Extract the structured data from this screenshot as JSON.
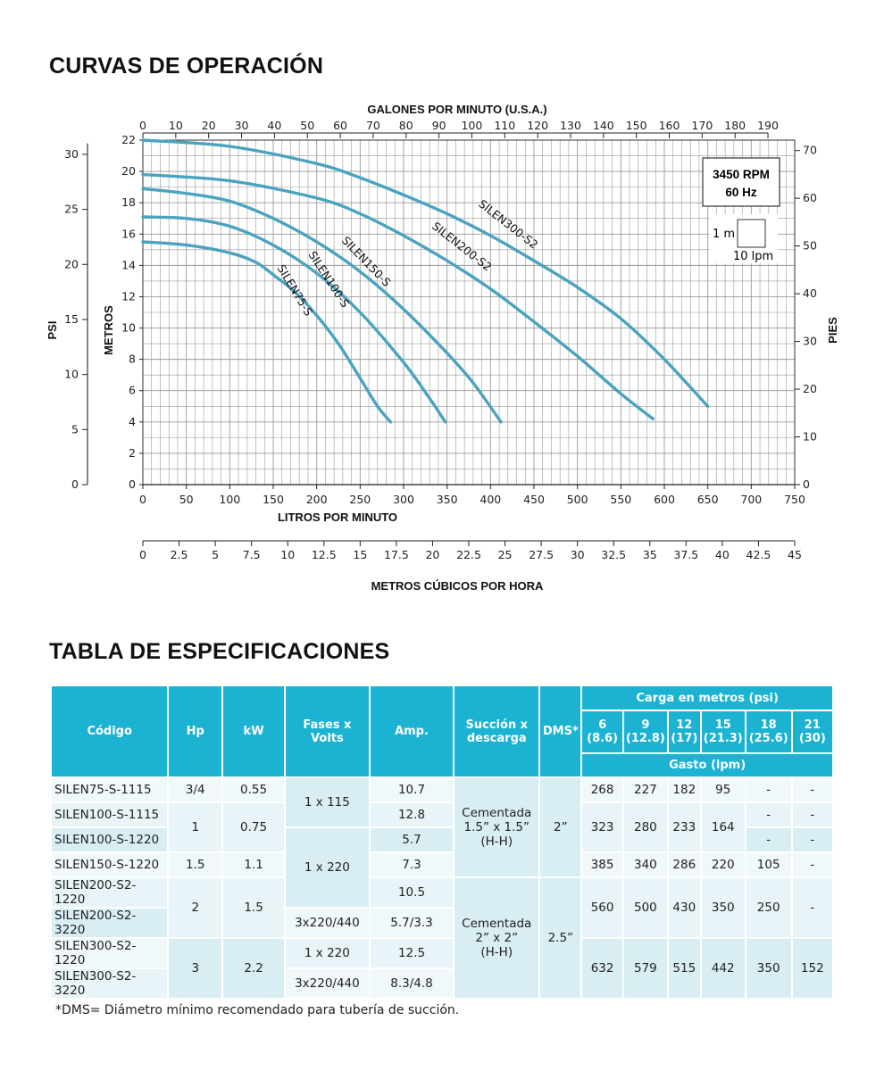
{
  "headings": {
    "curves": "CURVAS DE OPERACIÓN",
    "table": "TABLA DE ESPECIFICACIONES"
  },
  "chart_data": {
    "type": "line",
    "title": "",
    "x_top_label": "GALONES POR MINUTO (U.S.A.)",
    "x_top_ticks": [
      "0",
      "10",
      "20",
      "30",
      "40",
      "50",
      "60",
      "70",
      "80",
      "90",
      "100",
      "110",
      "120",
      "130",
      "140",
      "150",
      "160",
      "170",
      "180",
      "190"
    ],
    "xlabel": "LITROS POR MINUTO",
    "x_ticks": [
      "0",
      "50",
      "100",
      "150",
      "200",
      "250",
      "300",
      "350",
      "400",
      "450",
      "500",
      "550",
      "600",
      "650",
      "700",
      "750"
    ],
    "x2label": "METROS CÚBICOS POR HORA",
    "x2_ticks": [
      "0",
      "2.5",
      "5",
      "7.5",
      "10",
      "12.5",
      "15",
      "17.5",
      "20",
      "22.5",
      "25",
      "27.5",
      "30",
      "32.5",
      "35",
      "37.5",
      "40",
      "42.5",
      "45"
    ],
    "ylabel": "METROS",
    "y_ticks": [
      "0",
      "2",
      "4",
      "6",
      "8",
      "10",
      "12",
      "14",
      "16",
      "18",
      "20",
      "22"
    ],
    "y_psi_label": "PSI",
    "y_psi_ticks": [
      "0",
      "5",
      "10",
      "15",
      "20",
      "25",
      "30"
    ],
    "y_ft_label": "PIES",
    "y_ft_ticks": [
      "0",
      "10",
      "20",
      "30",
      "40",
      "50",
      "60",
      "70"
    ],
    "xlim": [
      0,
      750
    ],
    "ylim": [
      0,
      22
    ],
    "grid": true,
    "rpm_box": [
      "3450 RPM",
      "60 Hz"
    ],
    "scale_key": {
      "v": "1 m",
      "h": "10 lpm"
    },
    "series": [
      {
        "name": "SILEN75-S",
        "color": "#4aa3bf",
        "x": [
          0,
          50,
          100,
          130,
          150,
          175,
          200,
          225,
          250,
          270,
          285
        ],
        "y": [
          15.5,
          15.3,
          14.8,
          14.2,
          13.4,
          12.3,
          10.8,
          9.0,
          6.8,
          5.0,
          4.0
        ]
      },
      {
        "name": "SILEN100-S",
        "color": "#4aa3bf",
        "x": [
          0,
          50,
          100,
          150,
          200,
          250,
          300,
          330,
          348
        ],
        "y": [
          17.1,
          17.0,
          16.5,
          15.3,
          13.5,
          11.0,
          7.8,
          5.5,
          4.0
        ]
      },
      {
        "name": "SILEN150-S",
        "color": "#4aa3bf",
        "x": [
          0,
          50,
          100,
          150,
          200,
          250,
          300,
          350,
          380,
          412
        ],
        "y": [
          18.9,
          18.6,
          18.1,
          17.0,
          15.5,
          13.6,
          11.2,
          8.4,
          6.5,
          4.0
        ]
      },
      {
        "name": "SILEN200-S2",
        "color": "#4aa3bf",
        "x": [
          0,
          100,
          200,
          250,
          300,
          350,
          400,
          450,
          500,
          550,
          587
        ],
        "y": [
          19.8,
          19.4,
          18.3,
          17.3,
          15.9,
          14.3,
          12.5,
          10.4,
          8.2,
          5.8,
          4.2
        ]
      },
      {
        "name": "SILEN300-S2",
        "color": "#4aa3bf",
        "x": [
          0,
          100,
          200,
          250,
          300,
          350,
          400,
          450,
          500,
          550,
          600,
          650
        ],
        "y": [
          22.0,
          21.6,
          20.5,
          19.6,
          18.5,
          17.3,
          15.9,
          14.3,
          12.6,
          10.6,
          8.0,
          5.0
        ]
      }
    ]
  },
  "table": {
    "header": {
      "code": "Código",
      "hp": "Hp",
      "kw": "kW",
      "fases": "Fases x Volts",
      "amp": "Amp.",
      "succion": "Succión x descarga",
      "dms": "DMS*",
      "carga": "Carga en metros (psi)",
      "carga_cols": [
        {
          "m": "6",
          "psi": "(8.6)"
        },
        {
          "m": "9",
          "psi": "(12.8)"
        },
        {
          "m": "12",
          "psi": "(17)"
        },
        {
          "m": "15",
          "psi": "(21.3)"
        },
        {
          "m": "18",
          "psi": "(25.6)"
        },
        {
          "m": "21",
          "psi": "(30)"
        }
      ],
      "gasto": "Gasto (lpm)"
    },
    "rows": [
      {
        "code": "SILEN75-S-1115",
        "amp": "10.7"
      },
      {
        "code": "SILEN100-S-1115",
        "amp": "12.8"
      },
      {
        "code": "SILEN100-S-1220",
        "amp": "5.7"
      },
      {
        "code": "SILEN150-S-1220",
        "amp": "7.3"
      },
      {
        "code": "SILEN200-S2-1220",
        "amp": "10.5"
      },
      {
        "code": "SILEN200-S2-3220",
        "amp": "5.7/3.3"
      },
      {
        "code": "SILEN300-S2-1220",
        "amp": "12.5"
      },
      {
        "code": "SILEN300-S2-3220",
        "amp": "8.3/4.8"
      }
    ],
    "hp": [
      "3/4",
      "1",
      "1.5",
      "2",
      "3"
    ],
    "kw": [
      "0.55",
      "0.75",
      "1.1",
      "1.5",
      "2.2"
    ],
    "fases": [
      "1 x 115",
      "1 x 220",
      "3x220/440",
      "1 x 220",
      "3x220/440"
    ],
    "succion": [
      [
        "Cementada",
        "1.5” x 1.5”",
        "(H-H)"
      ],
      [
        "Cementada",
        "2” x 2”",
        "(H-H)"
      ]
    ],
    "dms": [
      "2”",
      "2.5”"
    ],
    "gasto": {
      "r75": [
        "268",
        "227",
        "182",
        "95",
        "-",
        "-"
      ],
      "r100": [
        "323",
        "280",
        "233",
        "164"
      ],
      "r100_18": "-",
      "r100_21": "-",
      "r100b_18": "-",
      "r100b_21": "-",
      "r150": [
        "385",
        "340",
        "286",
        "220",
        "105",
        "-"
      ],
      "r200": [
        "560",
        "500",
        "430",
        "350",
        "250",
        "-"
      ],
      "r300": [
        "632",
        "579",
        "515",
        "442",
        "350",
        "152"
      ]
    }
  },
  "note": "*DMS= Diámetro mínimo recomendado para tubería de succión.",
  "colors": {
    "header": "#1cb3d3",
    "curve": "#4aa3bf",
    "grid": "#9a9a9a"
  }
}
